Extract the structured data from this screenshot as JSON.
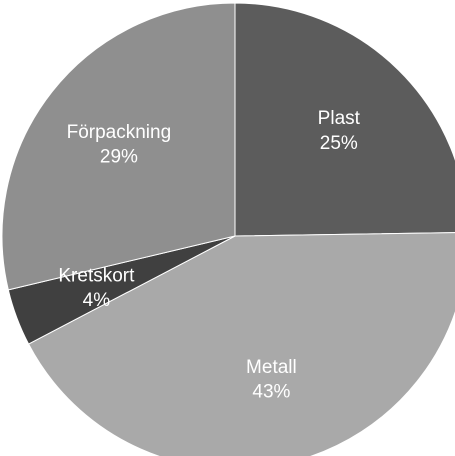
{
  "chart_data": {
    "type": "pie",
    "title": "",
    "start_angle_deg": 0,
    "direction": "clockwise",
    "slices": [
      {
        "label": "Plast",
        "value": 25,
        "value_label": "25%",
        "color": "#5c5c5c"
      },
      {
        "label": "Metall",
        "value": 43,
        "value_label": "43%",
        "color": "#a9a9a9"
      },
      {
        "label": "Kretskort",
        "value": 4,
        "value_label": "4%",
        "color": "#404040"
      },
      {
        "label": "Förpackning",
        "value": 29,
        "value_label": "29%",
        "color": "#8f8f8f"
      }
    ]
  }
}
